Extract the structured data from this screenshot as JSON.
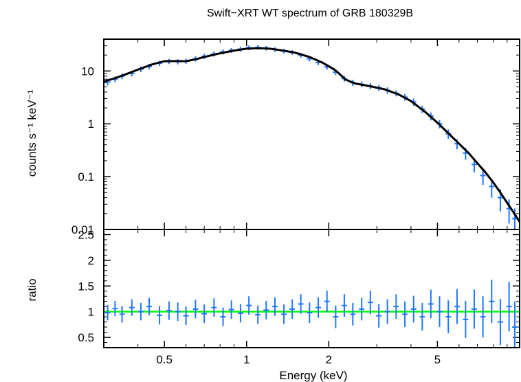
{
  "chart_data": [
    {
      "type": "scatter",
      "title": "Swift−XRT WT spectrum of GRB 180329B",
      "xlabel": "",
      "ylabel": "counts s⁻¹ keV⁻¹",
      "x_scale": "log",
      "y_scale": "log",
      "xlim": [
        0.3,
        10
      ],
      "ylim": [
        0.01,
        40
      ],
      "y_tick_labels": [
        "0.01",
        "0.1",
        "1",
        "10"
      ],
      "y_tick_values": [
        0.01,
        0.1,
        1,
        10
      ],
      "grid": false,
      "colors": {
        "data": "#1f77ff",
        "model": "#000000"
      },
      "series": [
        {
          "name": "",
          "role": "data",
          "x": [
            0.31,
            0.33,
            0.35,
            0.38,
            0.41,
            0.44,
            0.48,
            0.52,
            0.56,
            0.6,
            0.65,
            0.7,
            0.76,
            0.82,
            0.88,
            0.95,
            1.02,
            1.1,
            1.18,
            1.27,
            1.37,
            1.47,
            1.58,
            1.7,
            1.83,
            1.97,
            2.12,
            2.28,
            2.45,
            2.64,
            2.84,
            3.05,
            3.28,
            3.53,
            3.8,
            4.09,
            4.4,
            4.73,
            5.09,
            5.48,
            5.9,
            6.34,
            6.82,
            7.34,
            7.9,
            8.5,
            9.15,
            9.6
          ],
          "y": [
            6.2,
            7.0,
            8.0,
            9.0,
            10.8,
            12.2,
            14.0,
            15.2,
            15.0,
            15.4,
            17.0,
            19.0,
            21.0,
            23.0,
            24.5,
            26.0,
            27.5,
            28.0,
            27.0,
            25.5,
            24.0,
            22.5,
            20.0,
            17.0,
            14.5,
            12.0,
            9.5,
            7.2,
            6.0,
            5.6,
            5.2,
            4.8,
            4.3,
            3.8,
            3.2,
            2.6,
            1.9,
            1.4,
            1.0,
            0.65,
            0.42,
            0.28,
            0.17,
            0.105,
            0.065,
            0.04,
            0.025,
            0.016
          ],
          "y_err": [
            0.9,
            0.9,
            1.0,
            1.1,
            1.3,
            1.4,
            1.6,
            1.7,
            1.7,
            1.7,
            1.9,
            2.1,
            2.3,
            2.5,
            2.6,
            2.7,
            2.8,
            2.8,
            2.7,
            2.6,
            2.4,
            2.3,
            2.1,
            1.8,
            1.6,
            1.4,
            1.1,
            0.9,
            0.8,
            0.7,
            0.7,
            0.6,
            0.6,
            0.5,
            0.45,
            0.4,
            0.3,
            0.24,
            0.18,
            0.13,
            0.09,
            0.07,
            0.05,
            0.035,
            0.025,
            0.018,
            0.012,
            0.009
          ]
        },
        {
          "name": "",
          "role": "model",
          "x": [
            0.3,
            0.33,
            0.36,
            0.4,
            0.45,
            0.5,
            0.55,
            0.6,
            0.65,
            0.7,
            0.8,
            0.9,
            1.0,
            1.1,
            1.2,
            1.3,
            1.5,
            1.7,
            1.9,
            2.1,
            2.2,
            2.3,
            2.5,
            2.8,
            3.2,
            3.6,
            4.0,
            4.5,
            5.0,
            5.5,
            6.0,
            6.5,
            7.0,
            7.5,
            8.0,
            8.5,
            9.0,
            9.5,
            10.0
          ],
          "y": [
            6.3,
            7.3,
            8.6,
            10.6,
            13.3,
            15.3,
            15.4,
            15.3,
            16.6,
            18.4,
            21.6,
            24.3,
            26.4,
            27.0,
            26.6,
            25.2,
            22.3,
            18.4,
            14.3,
            10.6,
            8.6,
            6.9,
            5.8,
            5.2,
            4.5,
            3.6,
            2.7,
            1.7,
            1.05,
            0.65,
            0.42,
            0.28,
            0.18,
            0.12,
            0.078,
            0.05,
            0.032,
            0.021,
            0.014
          ]
        }
      ]
    },
    {
      "type": "scatter",
      "title": "",
      "xlabel": "Energy (keV)",
      "ylabel": "ratio",
      "x_scale": "log",
      "y_scale": "linear",
      "xlim": [
        0.3,
        10
      ],
      "ylim": [
        0.3,
        2.6
      ],
      "x_tick_labels": [
        "0.5",
        "1",
        "2",
        "5"
      ],
      "x_tick_values": [
        0.5,
        1,
        2,
        5
      ],
      "y_tick_labels": [
        "0.5",
        "1",
        "1.5",
        "2",
        "2.5"
      ],
      "y_tick_values": [
        0.5,
        1,
        1.5,
        2,
        2.5
      ],
      "reference_line": 1,
      "grid": false,
      "colors": {
        "data": "#1f77ff",
        "reference": "#00ff00"
      },
      "series": [
        {
          "name": "",
          "role": "data",
          "x": [
            0.31,
            0.33,
            0.35,
            0.38,
            0.41,
            0.44,
            0.48,
            0.52,
            0.56,
            0.6,
            0.65,
            0.7,
            0.76,
            0.82,
            0.88,
            0.95,
            1.02,
            1.1,
            1.18,
            1.27,
            1.37,
            1.47,
            1.58,
            1.7,
            1.83,
            1.97,
            2.12,
            2.28,
            2.45,
            2.64,
            2.84,
            3.05,
            3.28,
            3.53,
            3.8,
            4.09,
            4.4,
            4.73,
            5.09,
            5.48,
            5.9,
            6.34,
            6.82,
            7.34,
            7.9,
            8.5,
            9.15,
            9.6
          ],
          "y": [
            0.98,
            1.06,
            0.95,
            1.08,
            1.0,
            1.1,
            0.93,
            1.02,
            1.0,
            0.92,
            1.05,
            0.96,
            1.08,
            0.9,
            1.04,
            0.97,
            1.12,
            0.94,
            1.03,
            1.1,
            0.95,
            1.05,
            1.15,
            0.98,
            1.08,
            1.2,
            0.9,
            1.12,
            0.95,
            1.05,
            1.18,
            0.92,
            1.0,
            1.1,
            0.95,
            1.05,
            0.9,
            1.15,
            1.0,
            0.9,
            1.1,
            0.85,
            1.05,
            0.9,
            1.2,
            0.8,
            1.1,
            0.7
          ],
          "y_err": [
            0.15,
            0.15,
            0.16,
            0.16,
            0.17,
            0.17,
            0.18,
            0.18,
            0.18,
            0.18,
            0.18,
            0.18,
            0.18,
            0.18,
            0.18,
            0.18,
            0.18,
            0.18,
            0.18,
            0.18,
            0.19,
            0.19,
            0.19,
            0.2,
            0.2,
            0.21,
            0.22,
            0.22,
            0.22,
            0.22,
            0.23,
            0.23,
            0.24,
            0.24,
            0.25,
            0.26,
            0.27,
            0.28,
            0.3,
            0.32,
            0.34,
            0.36,
            0.38,
            0.4,
            0.42,
            0.45,
            0.48,
            0.5
          ]
        }
      ]
    }
  ]
}
